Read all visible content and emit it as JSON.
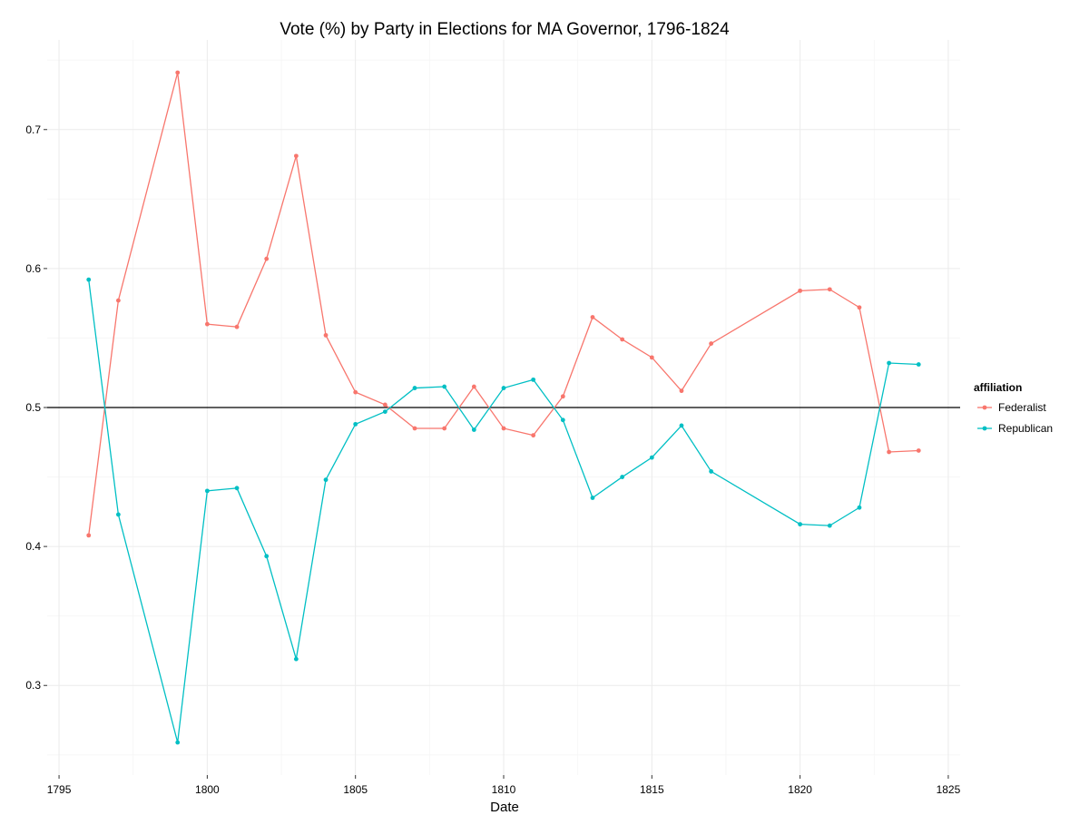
{
  "chart_data": {
    "type": "line",
    "title": "Vote (%) by Party in Elections for MA Governor, 1796-1824",
    "xlabel": "Date",
    "ylabel": "",
    "xlim": [
      1794.6,
      1825.4
    ],
    "ylim": [
      0.2355,
      0.7645
    ],
    "x_ticks": [
      1795,
      1800,
      1805,
      1810,
      1815,
      1820,
      1825
    ],
    "y_ticks": [
      0.3,
      0.4,
      0.5,
      0.6,
      0.7
    ],
    "x_tick_labels": [
      "1795",
      "1800",
      "1805",
      "1810",
      "1815",
      "1820",
      "1825"
    ],
    "y_tick_labels": [
      "0.3",
      "0.4",
      "0.5",
      "0.6",
      "0.7"
    ],
    "reference_line": 0.5,
    "grid": true,
    "legend": {
      "title": "affiliation",
      "position": "right"
    },
    "series": [
      {
        "name": "Federalist",
        "color": "#F8766D",
        "points": [
          [
            1796,
            0.408
          ],
          [
            1797,
            0.577
          ],
          [
            1799,
            0.741
          ],
          [
            1800,
            0.56
          ],
          [
            1801,
            0.558
          ],
          [
            1802,
            0.607
          ],
          [
            1803,
            0.681
          ],
          [
            1804,
            0.552
          ],
          [
            1805,
            0.511
          ],
          [
            1806,
            0.502
          ],
          [
            1807,
            0.485
          ],
          [
            1808,
            0.485
          ],
          [
            1809,
            0.515
          ],
          [
            1810,
            0.485
          ],
          [
            1811,
            0.48
          ],
          [
            1812,
            0.508
          ],
          [
            1813,
            0.565
          ],
          [
            1814,
            0.549
          ],
          [
            1815,
            0.536
          ],
          [
            1816,
            0.512
          ],
          [
            1817,
            0.546
          ],
          [
            1820,
            0.584
          ],
          [
            1821,
            0.585
          ],
          [
            1822,
            0.572
          ],
          [
            1823,
            0.468
          ],
          [
            1824,
            0.469
          ]
        ]
      },
      {
        "name": "Republican",
        "color": "#00BFC4",
        "points": [
          [
            1796,
            0.592
          ],
          [
            1797,
            0.423
          ],
          [
            1799,
            0.259
          ],
          [
            1800,
            0.44
          ],
          [
            1801,
            0.442
          ],
          [
            1802,
            0.393
          ],
          [
            1803,
            0.319
          ],
          [
            1804,
            0.448
          ],
          [
            1805,
            0.488
          ],
          [
            1806,
            0.497
          ],
          [
            1807,
            0.514
          ],
          [
            1808,
            0.515
          ],
          [
            1809,
            0.484
          ],
          [
            1810,
            0.514
          ],
          [
            1811,
            0.52
          ],
          [
            1812,
            0.491
          ],
          [
            1813,
            0.435
          ],
          [
            1814,
            0.45
          ],
          [
            1815,
            0.464
          ],
          [
            1816,
            0.487
          ],
          [
            1817,
            0.454
          ],
          [
            1820,
            0.416
          ],
          [
            1821,
            0.415
          ],
          [
            1822,
            0.428
          ],
          [
            1823,
            0.532
          ],
          [
            1824,
            0.531
          ]
        ]
      }
    ]
  }
}
